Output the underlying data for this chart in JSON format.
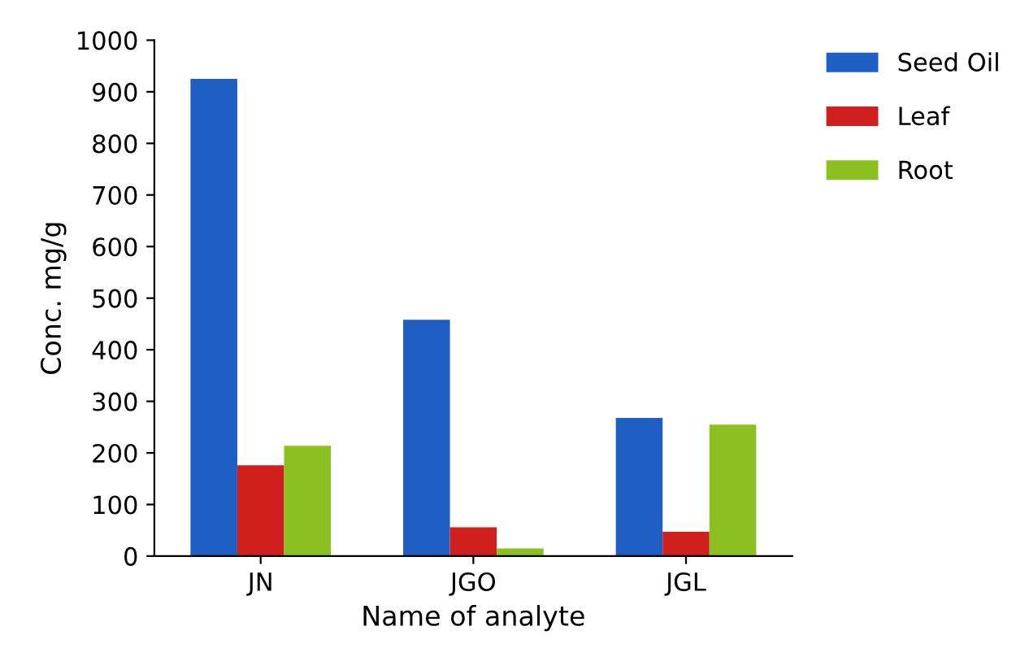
{
  "chart_data": {
    "type": "bar",
    "xlabel": "Name of analyte",
    "ylabel": "Conc. mg/g",
    "categories": [
      "JN",
      "JGO",
      "JGL"
    ],
    "series": [
      {
        "name": "Seed Oil",
        "color": "#1f5fc4",
        "values": [
          925,
          458,
          268
        ]
      },
      {
        "name": "Leaf",
        "color": "#d0201e",
        "values": [
          176,
          56,
          47
        ]
      },
      {
        "name": "Root",
        "color": "#8cc020",
        "values": [
          214,
          15,
          255
        ]
      }
    ],
    "ylim": [
      0,
      1000
    ],
    "yticks": [
      0,
      100,
      200,
      300,
      400,
      500,
      600,
      700,
      800,
      900,
      1000
    ],
    "grid": false,
    "legend": "top right"
  }
}
